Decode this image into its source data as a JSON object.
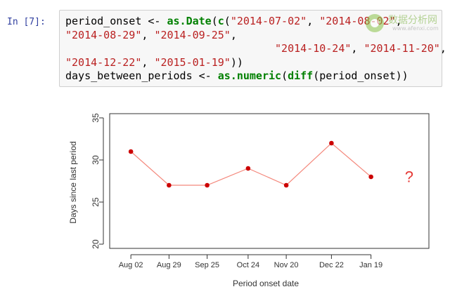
{
  "cell": {
    "prompt": "In [7]:",
    "code_lines": [
      [
        {
          "t": "period_onset <- ",
          "c": "txt"
        },
        {
          "t": "as.Date",
          "c": "fn"
        },
        {
          "t": "(",
          "c": "txt"
        },
        {
          "t": "c",
          "c": "fn"
        },
        {
          "t": "(",
          "c": "txt"
        },
        {
          "t": "\"2014-07-02\"",
          "c": "str"
        },
        {
          "t": ", ",
          "c": "txt"
        },
        {
          "t": "\"2014-08-02\"",
          "c": "str"
        },
        {
          "t": ",",
          "c": "txt"
        }
      ],
      [
        {
          "t": "\"2014-08-29\"",
          "c": "str"
        },
        {
          "t": ", ",
          "c": "txt"
        },
        {
          "t": "\"2014-09-25\"",
          "c": "str"
        },
        {
          "t": ",",
          "c": "txt"
        }
      ],
      [
        {
          "t": "                                 ",
          "c": "txt"
        },
        {
          "t": "\"2014-10-24\"",
          "c": "str"
        },
        {
          "t": ", ",
          "c": "txt"
        },
        {
          "t": "\"2014-11-20\"",
          "c": "str"
        },
        {
          "t": ",",
          "c": "txt"
        }
      ],
      [
        {
          "t": "\"2014-12-22\"",
          "c": "str"
        },
        {
          "t": ", ",
          "c": "txt"
        },
        {
          "t": "\"2015-01-19\"",
          "c": "str"
        },
        {
          "t": "))",
          "c": "txt"
        }
      ],
      [
        {
          "t": "days_between_periods <- ",
          "c": "txt"
        },
        {
          "t": "as.numeric",
          "c": "fn"
        },
        {
          "t": "(",
          "c": "txt"
        },
        {
          "t": "diff",
          "c": "fn"
        },
        {
          "t": "(period_onset))",
          "c": "txt"
        }
      ]
    ]
  },
  "watermark": {
    "text_cn": "数据分析网",
    "url": "www.afenxi.com"
  },
  "colors": {
    "prompt": "#303f9f",
    "line": "#f4887c",
    "point": "#cc0000",
    "question_mark": "#e53935",
    "axis": "#333333"
  },
  "chart_data": {
    "type": "line",
    "title": "",
    "xlabel": "Period onset date",
    "ylabel": "Days since last period",
    "x": [
      "2014-08-02",
      "2014-08-29",
      "2014-09-25",
      "2014-10-24",
      "2014-11-20",
      "2014-12-22",
      "2015-01-19"
    ],
    "tick_labels": [
      "Aug 02",
      "Aug 29",
      "Sep 25",
      "Oct 24",
      "Nov 20",
      "Dec 22",
      "Jan 19"
    ],
    "values": [
      31,
      27,
      27,
      29,
      27,
      32,
      28
    ],
    "ylim": [
      19.5,
      35.5
    ],
    "xlim": [
      "2014-07-18",
      "2015-03-01"
    ],
    "yticks": [
      20,
      25,
      30,
      35
    ],
    "grid": false,
    "annotation": "?",
    "annotation_x": "2015-02-15",
    "annotation_y": 28
  }
}
